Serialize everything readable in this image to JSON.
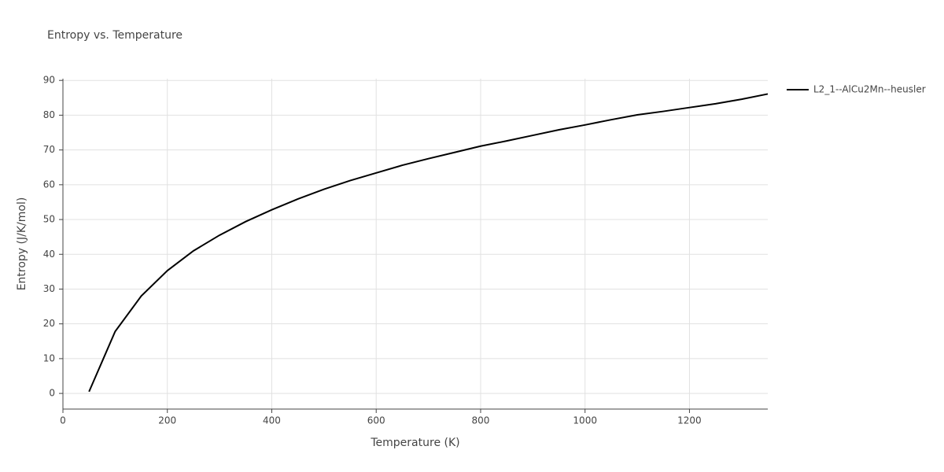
{
  "chart_data": {
    "type": "line",
    "title": "Entropy vs. Temperature",
    "x_label": "Temperature (K)",
    "y_label": "Entropy (J/K/mol)",
    "x": [
      50,
      100,
      150,
      200,
      250,
      300,
      350,
      400,
      450,
      500,
      550,
      600,
      650,
      700,
      750,
      800,
      850,
      900,
      950,
      1000,
      1050,
      1100,
      1150,
      1200,
      1250,
      1300,
      1350
    ],
    "series": [
      {
        "name": "L2_1--AlCu2Mn--heusler",
        "color": "#000000",
        "values": [
          0.5,
          17.8,
          28.0,
          35.3,
          41.0,
          45.5,
          49.4,
          52.8,
          55.9,
          58.7,
          61.2,
          63.4,
          65.6,
          67.5,
          69.3,
          71.1,
          72.6,
          74.2,
          75.8,
          77.2,
          78.7,
          80.1,
          81.1,
          82.2,
          83.3,
          84.6,
          86.1
        ]
      }
    ],
    "xlim": [
      0,
      1350
    ],
    "ylim": [
      -4.5,
      90.5
    ],
    "xticks": [
      0,
      200,
      400,
      600,
      800,
      1000,
      1200
    ],
    "yticks": [
      0,
      10,
      20,
      30,
      40,
      50,
      60,
      70,
      80,
      90
    ],
    "grid": true,
    "legend": "right"
  }
}
